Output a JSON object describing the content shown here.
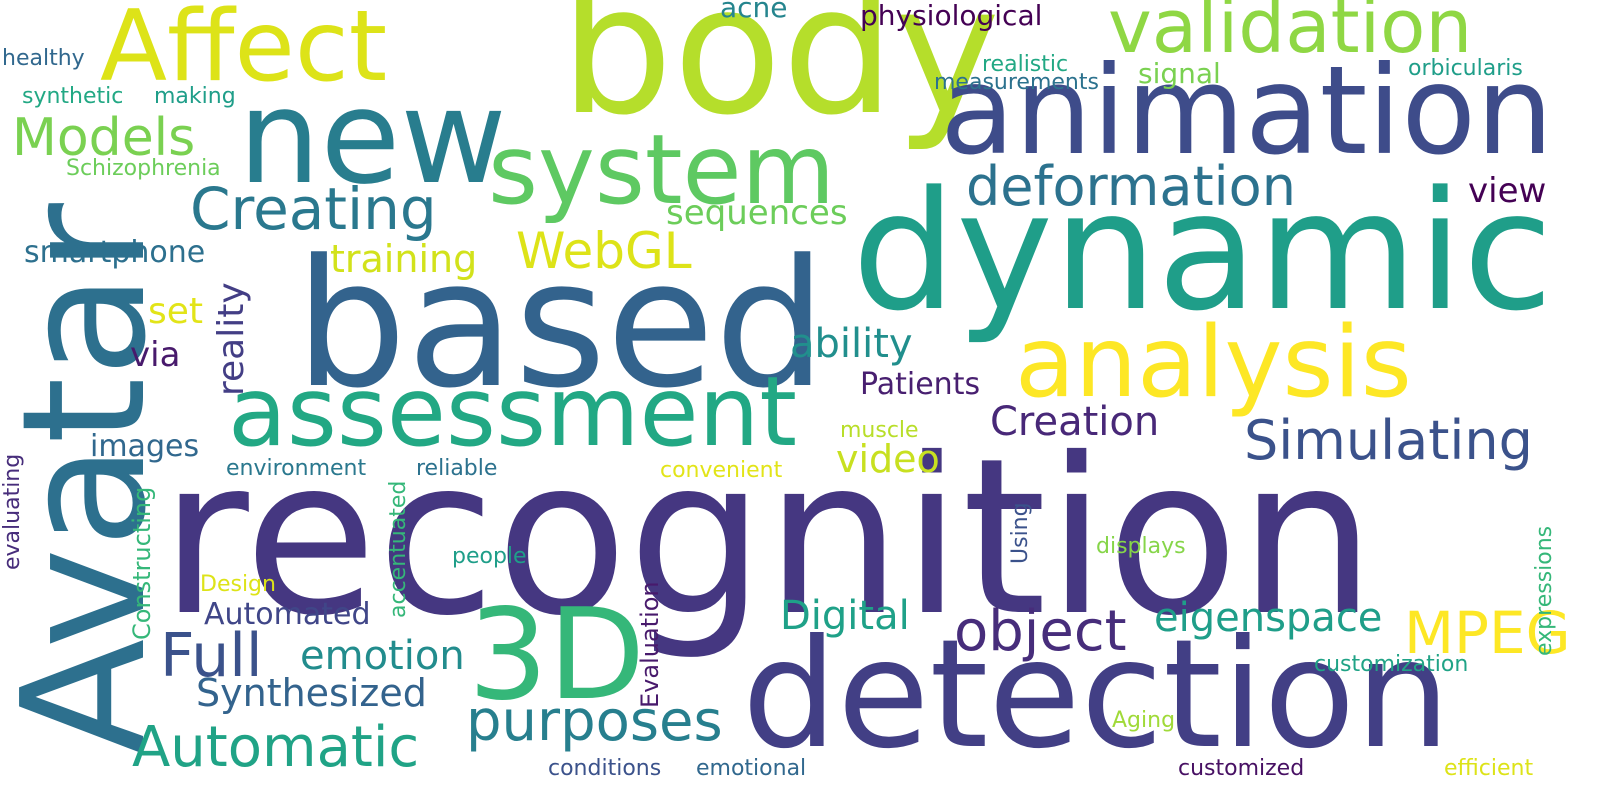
{
  "word_cloud": {
    "words": [
      {
        "text": "recognition",
        "color": "#453781"
      },
      {
        "text": "Avatar",
        "color": "#2d708e"
      },
      {
        "text": "body",
        "color": "#b5de2b"
      },
      {
        "text": "dynamic",
        "color": "#1f9e89"
      },
      {
        "text": "based",
        "color": "#33638d"
      },
      {
        "text": "detection",
        "color": "#423f85"
      },
      {
        "text": "animation",
        "color": "#3e4c8a"
      },
      {
        "text": "new",
        "color": "#287d8e"
      },
      {
        "text": "assessment",
        "color": "#22a884"
      },
      {
        "text": "Affect",
        "color": "#dde318"
      },
      {
        "text": "analysis",
        "color": "#fde725"
      },
      {
        "text": "system",
        "color": "#5ec962"
      },
      {
        "text": "validation",
        "color": "#8fd744"
      },
      {
        "text": "3D",
        "color": "#35b779"
      },
      {
        "text": "deformation",
        "color": "#2c728e"
      },
      {
        "text": "Simulating",
        "color": "#3b528b"
      },
      {
        "text": "Automatic",
        "color": "#20a386"
      },
      {
        "text": "purposes",
        "color": "#277f8e"
      },
      {
        "text": "object",
        "color": "#472d7b"
      },
      {
        "text": "Creating",
        "color": "#2a788e"
      },
      {
        "text": "Full",
        "color": "#3b528b"
      },
      {
        "text": "MPEG",
        "color": "#fde725"
      },
      {
        "text": "WebGL",
        "color": "#dde318"
      },
      {
        "text": "Models",
        "color": "#7ad151"
      },
      {
        "text": "Creation",
        "color": "#482878"
      },
      {
        "text": "emotion",
        "color": "#228c8d"
      },
      {
        "text": "Synthesized",
        "color": "#33638d"
      },
      {
        "text": "eigenspace",
        "color": "#1f9e89"
      },
      {
        "text": "Digital",
        "color": "#1fa188"
      },
      {
        "text": "ability",
        "color": "#218f8d"
      },
      {
        "text": "video",
        "color": "#c8e020"
      },
      {
        "text": "reality",
        "color": "#433e85"
      },
      {
        "text": "training",
        "color": "#d2e21b"
      },
      {
        "text": "sequences",
        "color": "#6ccd5a"
      },
      {
        "text": "view",
        "color": "#440154"
      },
      {
        "text": "Patients",
        "color": "#481f70"
      },
      {
        "text": "set",
        "color": "#e2e418"
      },
      {
        "text": "via",
        "color": "#481a6c"
      },
      {
        "text": "smartphone",
        "color": "#2d708e"
      },
      {
        "text": "images",
        "color": "#31688e"
      },
      {
        "text": "Automated",
        "color": "#404688"
      },
      {
        "text": "physiological",
        "color": "#440154"
      },
      {
        "text": "signal",
        "color": "#7ad151"
      },
      {
        "text": "acne",
        "color": "#25858e"
      },
      {
        "text": "healthy",
        "color": "#31688e"
      },
      {
        "text": "synthetic",
        "color": "#22a884"
      },
      {
        "text": "making",
        "color": "#1f9e89"
      },
      {
        "text": "Schizophrenia",
        "color": "#6ccd5a"
      },
      {
        "text": "realistic",
        "color": "#22a884"
      },
      {
        "text": "measurements",
        "color": "#2c728e"
      },
      {
        "text": "orbicularis",
        "color": "#1f9e89"
      },
      {
        "text": "environment",
        "color": "#2a788e"
      },
      {
        "text": "reliable",
        "color": "#2c728e"
      },
      {
        "text": "convenient",
        "color": "#e2e418"
      },
      {
        "text": "muscle",
        "color": "#b8de29"
      },
      {
        "text": "evaluating",
        "color": "#472d7b"
      },
      {
        "text": "Constructing",
        "color": "#35b779"
      },
      {
        "text": "accentuated",
        "color": "#35b779"
      },
      {
        "text": "Design",
        "color": "#dde318"
      },
      {
        "text": "people",
        "color": "#1f9e89"
      },
      {
        "text": "Evaluation",
        "color": "#481a6c"
      },
      {
        "text": "Using",
        "color": "#3b528b"
      },
      {
        "text": "displays",
        "color": "#86d549"
      },
      {
        "text": "expressions",
        "color": "#35b779"
      },
      {
        "text": "customization",
        "color": "#20a386"
      },
      {
        "text": "Aging",
        "color": "#a0da39"
      },
      {
        "text": "conditions",
        "color": "#3b528b"
      },
      {
        "text": "emotional",
        "color": "#31688e"
      },
      {
        "text": "customized",
        "color": "#471063"
      },
      {
        "text": "efficient",
        "color": "#dde318"
      }
    ]
  }
}
